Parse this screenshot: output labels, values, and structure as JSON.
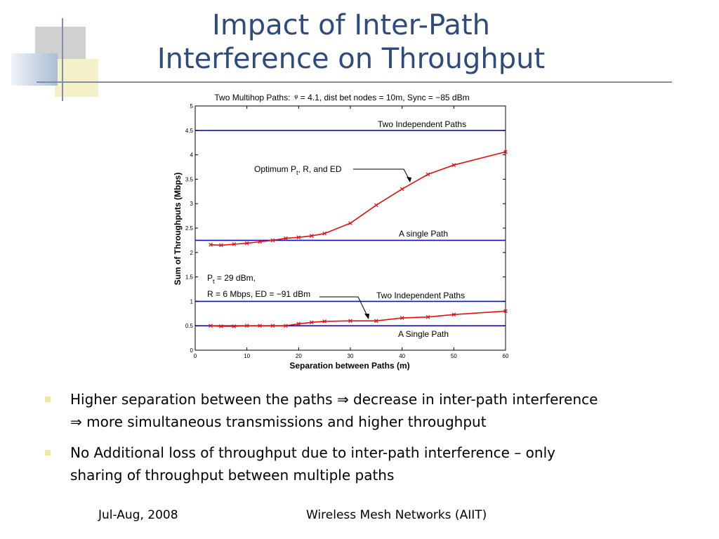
{
  "slide": {
    "title_line1": "Impact of Inter-Path",
    "title_line2": "Interference on Throughput",
    "bullets": [
      {
        "line1": "Higher separation between the paths ⇒ decrease in inter-path interference",
        "line2": "⇒ more simultaneous transmissions and higher throughput"
      },
      {
        "line1": "No Additional loss of throughput due to inter-path interference – only",
        "line2": "sharing of throughput between multiple paths"
      }
    ],
    "footer_date": "Jul-Aug, 2008",
    "footer_title": "Wireless Mesh Networks (AIIT)"
  },
  "chart_data": {
    "type": "line",
    "title": "Two Multihop Paths:  ᵠ = 4.1, dist bet nodes = 10m, Sync = −85 dBm",
    "xlabel": "Separation between Paths (m)",
    "ylabel": "Sum of Throughputs (Mbps)",
    "xlim": [
      0,
      60
    ],
    "ylim": [
      0,
      5
    ],
    "xticks": [
      "0",
      "10",
      "20",
      "30",
      "40",
      "50",
      "60"
    ],
    "yticks": [
      "0",
      "0.5",
      "1",
      "1.5",
      "2",
      "2.5",
      "3",
      "3.5",
      "4",
      "4.5",
      "5"
    ],
    "grid": false,
    "series": [
      {
        "color": "#e01010",
        "marker": "x",
        "x": [
          3,
          5,
          7.5,
          10,
          12.5,
          15,
          17.5,
          20,
          22.5,
          25,
          30,
          35,
          40,
          45,
          50,
          60
        ],
        "y": [
          2.16,
          2.15,
          2.17,
          2.19,
          2.22,
          2.25,
          2.29,
          2.31,
          2.34,
          2.39,
          2.6,
          2.97,
          3.3,
          3.6,
          3.79,
          4.06
        ]
      },
      {
        "color": "#e01010",
        "marker": "x",
        "x": [
          3,
          5,
          7.5,
          10,
          12.5,
          15,
          17.5,
          20,
          22.5,
          25,
          30,
          35,
          40,
          45,
          50,
          60
        ],
        "y": [
          0.5,
          0.49,
          0.49,
          0.5,
          0.5,
          0.5,
          0.5,
          0.54,
          0.57,
          0.59,
          0.6,
          0.6,
          0.66,
          0.68,
          0.73,
          0.8
        ]
      }
    ],
    "hlines": [
      {
        "y": 4.5,
        "color": "#1010c0",
        "label": "Two Independent Paths"
      },
      {
        "y": 2.25,
        "color": "#1010c0",
        "label": "A single Path"
      },
      {
        "y": 1.0,
        "color": "#1010c0",
        "label": "Two Independent Paths"
      },
      {
        "y": 0.5,
        "color": "#1010c0",
        "label": "A Single Path"
      }
    ],
    "annotations": {
      "optimum": {
        "text": "Optimum P",
        "sub": "t",
        "rest": ", R, and ED"
      },
      "params_line1": {
        "text": "P",
        "sub": "t",
        "rest": " = 29 dBm,"
      },
      "params_line2": "R = 6 Mbps, ED = −91 dBm"
    }
  }
}
